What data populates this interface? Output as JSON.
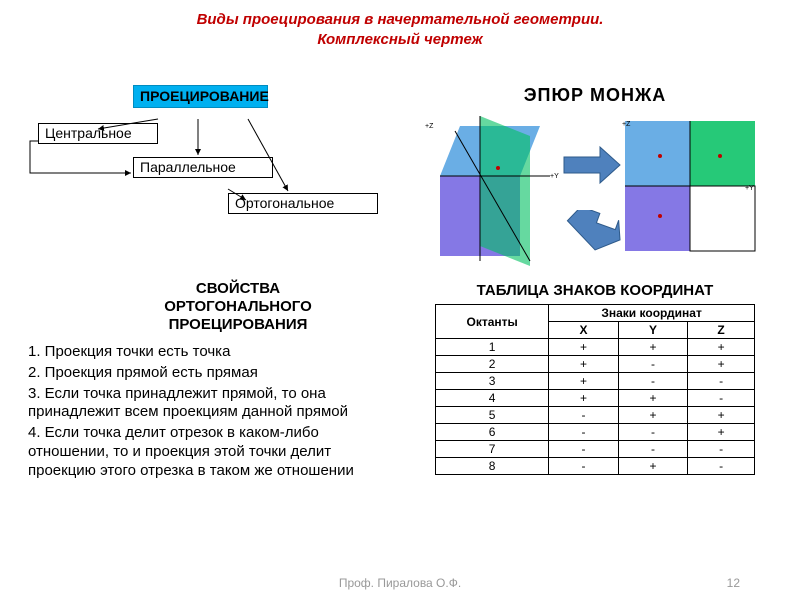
{
  "title_line1": "Виды проецирования в начертательной геометрии.",
  "title_line2": "Комплексный чертеж",
  "colors": {
    "title": "#c00000",
    "block_bg": "#00b0f0",
    "block_border": "#008cc0",
    "arrow": "#4f81bd",
    "table_border": "#000000",
    "footer": "#999999",
    "plane_green": "#00c060",
    "plane_violet": "#7060e0",
    "plane_blue": "#50a0e0"
  },
  "blocks": {
    "projection": "ПРОЕЦИРОВАНИЕ",
    "central": "Центральное",
    "parallel": "Параллельное",
    "orthogonal": "Ортогональное"
  },
  "epure_title": "ЭПЮР  МОНЖА",
  "props_heading": "СВОЙСТВА ОРТОГОНАЛЬНОГО ПРОЕЦИРОВАНИЯ",
  "props": [
    "1. Проекция точки есть точка",
    "2. Проекция прямой есть прямая",
    "3. Если точка принадлежит прямой, то она принадлежит всем проекциям данной прямой",
    "4. Если точка делит отрезок в каком-либо отношении, то и проекция этой точки делит проекцию этого отрезка в таком же отношении"
  ],
  "table_title": "ТАБЛИЦА   ЗНАКОВ КООРДИНАТ",
  "table": {
    "header_octant": "Октанты",
    "header_signs": "Знаки координат",
    "cols": [
      "X",
      "Y",
      "Z"
    ],
    "rows": [
      {
        "n": "1",
        "x": "+",
        "y": "+",
        "z": "+"
      },
      {
        "n": "2",
        "x": "+",
        "y": "-",
        "z": "+"
      },
      {
        "n": "3",
        "x": "+",
        "y": "-",
        "z": "-"
      },
      {
        "n": "4",
        "x": "+",
        "y": "+",
        "z": "-"
      },
      {
        "n": "5",
        "x": "-",
        "y": "+",
        "z": "+"
      },
      {
        "n": "6",
        "x": "-",
        "y": "-",
        "z": "+"
      },
      {
        "n": "7",
        "x": "-",
        "y": "-",
        "z": "-"
      },
      {
        "n": "8",
        "x": "-",
        "y": "+",
        "z": "-"
      }
    ]
  },
  "footer": "Проф. Пиралова О.Ф.",
  "page": "12",
  "style": {
    "title_fontsize": 15,
    "heading_fontsize": 15,
    "body_fontsize": 15,
    "table_fontsize": 12,
    "footer_fontsize": 12
  }
}
